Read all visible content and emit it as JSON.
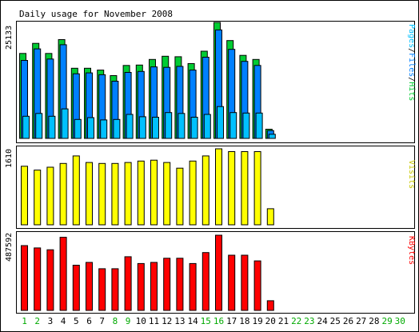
{
  "title": "Daily usage for November 2008",
  "colors": {
    "hits": "#00CC33",
    "files": "#0080FF",
    "pages": "#00C0FF",
    "visits": "#FFFF00",
    "kbytes": "#FF0000",
    "weekday_label": "#000000",
    "weekend_label": "#00AA00"
  },
  "chart_data": [
    {
      "type": "bar",
      "panel": "hits-files-pages",
      "categories": [
        "1",
        "2",
        "3",
        "4",
        "5",
        "6",
        "7",
        "8",
        "9",
        "10",
        "11",
        "12",
        "13",
        "14",
        "15",
        "16",
        "17",
        "18",
        "19",
        "20",
        "21",
        "22",
        "23",
        "24",
        "25",
        "26",
        "27",
        "28",
        "29",
        "30"
      ],
      "weekend_days": [
        "1",
        "2",
        "8",
        "9",
        "15",
        "16",
        "22",
        "23",
        "29",
        "30"
      ],
      "max_label": "25133",
      "ymax": 25133,
      "legend": {
        "pages": "Pages",
        "files": "Files",
        "hits": "Hits",
        "sep": "/"
      },
      "series": [
        {
          "name": "Hits",
          "values": [
            18400,
            20600,
            18400,
            21400,
            15200,
            15200,
            14800,
            13600,
            15800,
            15900,
            17100,
            17800,
            17700,
            16200,
            18900,
            25133,
            21200,
            18000,
            17100,
            2000,
            0,
            0,
            0,
            0,
            0,
            0,
            0,
            0,
            0,
            0
          ]
        },
        {
          "name": "Files",
          "values": [
            16900,
            19400,
            17200,
            20300,
            14000,
            14200,
            13800,
            12400,
            14300,
            14500,
            15500,
            15400,
            15600,
            14800,
            17600,
            23500,
            19300,
            16700,
            15800,
            1700,
            0,
            0,
            0,
            0,
            0,
            0,
            0,
            0,
            0,
            0
          ]
        },
        {
          "name": "Pages",
          "values": [
            4800,
            5400,
            4800,
            6400,
            4100,
            4500,
            4000,
            4100,
            5200,
            4700,
            4600,
            5600,
            5400,
            4600,
            5200,
            6900,
            5600,
            5500,
            5500,
            900,
            0,
            0,
            0,
            0,
            0,
            0,
            0,
            0,
            0,
            0
          ]
        }
      ]
    },
    {
      "type": "bar",
      "panel": "visits",
      "max_label": "1610",
      "ymax": 1610,
      "legend": "Visits",
      "series": [
        {
          "name": "Visits",
          "values": [
            1240,
            1160,
            1220,
            1300,
            1460,
            1320,
            1300,
            1300,
            1320,
            1350,
            1370,
            1320,
            1200,
            1350,
            1460,
            1610,
            1550,
            1550,
            1550,
            340,
            0,
            0,
            0,
            0,
            0,
            0,
            0,
            0,
            0,
            0
          ]
        }
      ]
    },
    {
      "type": "bar",
      "panel": "kbytes",
      "max_label": "487592",
      "ymax": 487592,
      "legend": "KBytes",
      "series": [
        {
          "name": "KBytes",
          "values": [
            420000,
            405000,
            393000,
            474000,
            293000,
            311000,
            270000,
            270000,
            348000,
            304000,
            311000,
            338000,
            338000,
            304000,
            375000,
            487592,
            358000,
            358000,
            321000,
            63000,
            0,
            0,
            0,
            0,
            0,
            0,
            0,
            0,
            0,
            0
          ]
        }
      ]
    }
  ]
}
